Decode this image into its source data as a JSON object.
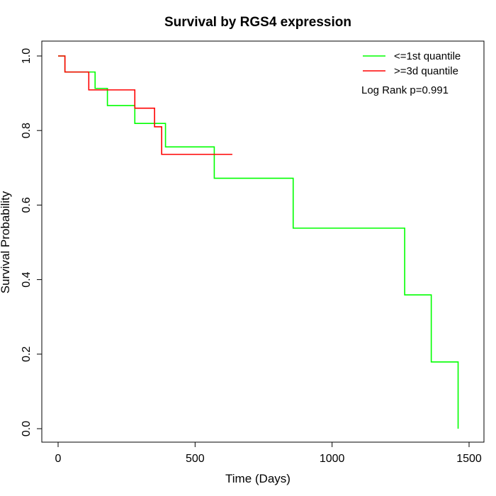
{
  "chart_data": {
    "type": "line",
    "title": "Survival by RGS4 expression",
    "xlabel": "Time (Days)",
    "ylabel": "Survival Probability",
    "xlim": [
      0,
      1500
    ],
    "ylim": [
      0,
      1
    ],
    "xticks": [
      0,
      500,
      1000,
      1500
    ],
    "yticks": [
      "0.0",
      "0.2",
      "0.4",
      "0.6",
      "0.8",
      "1.0"
    ],
    "legend_position": "top-right",
    "annotation": "Log Rank p=0.991",
    "series": [
      {
        "name": "<=1st quantile",
        "color": "#00ff00",
        "step": true,
        "x": [
          0,
          25,
          135,
          180,
          280,
          392,
          570,
          858,
          1265,
          1362,
          1460
        ],
        "y": [
          1.0,
          0.957,
          0.913,
          0.867,
          0.819,
          0.756,
          0.672,
          0.538,
          0.359,
          0.179,
          0.0
        ]
      },
      {
        "name": ">=3d quantile",
        "color": "#ff0000",
        "step": true,
        "x": [
          0,
          25,
          112,
          280,
          352,
          378,
          636
        ],
        "y": [
          1.0,
          0.957,
          0.909,
          0.86,
          0.81,
          0.736,
          0.736
        ]
      }
    ]
  }
}
